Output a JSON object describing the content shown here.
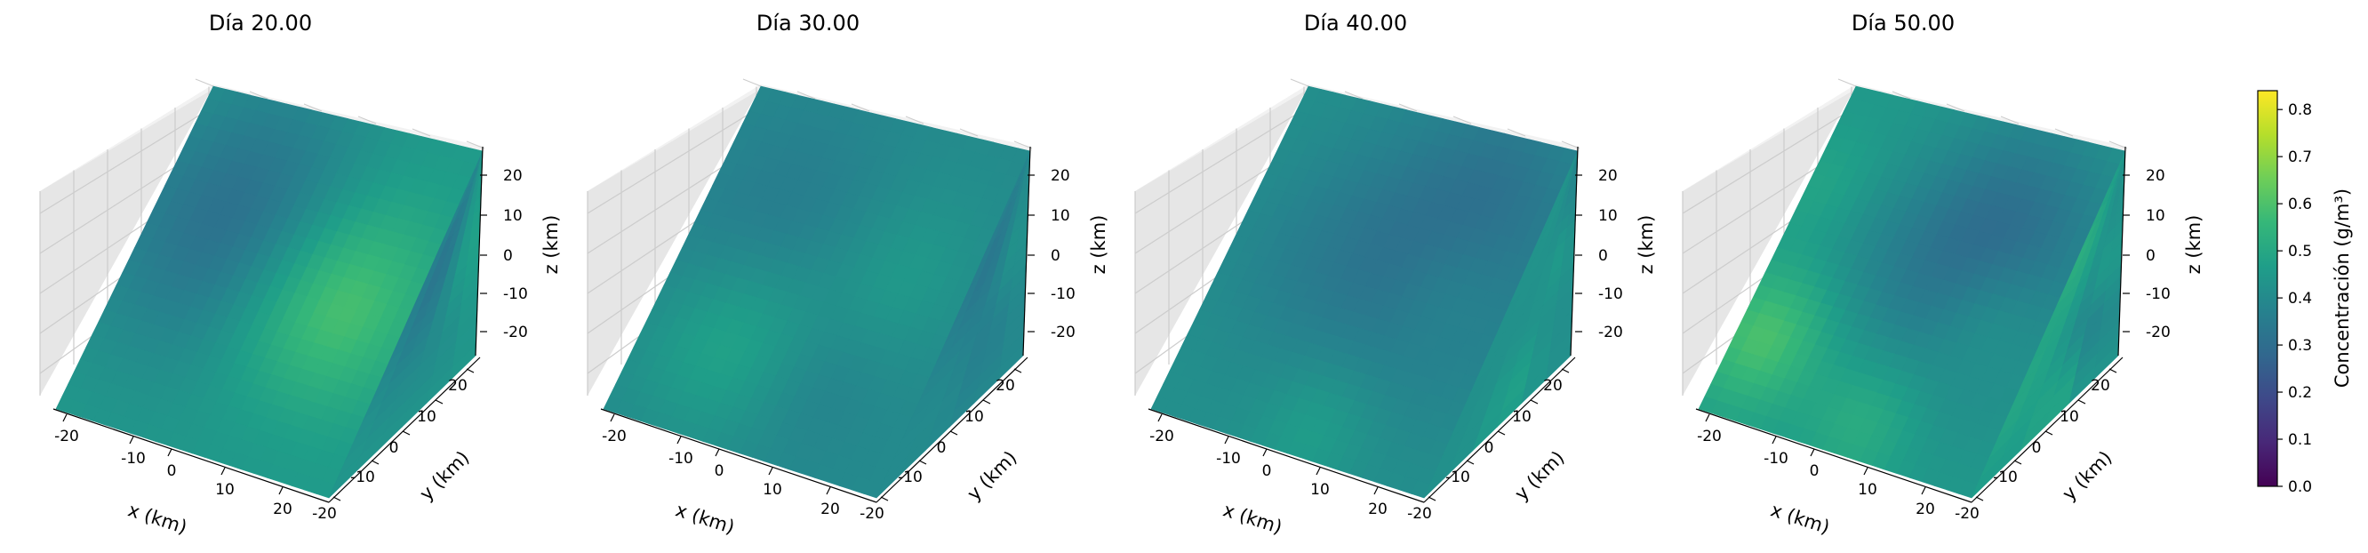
{
  "chart_data": {
    "type": "heatmap",
    "subtype": "3d-cube-surface",
    "panels": [
      {
        "title": "Día 20.00",
        "blobs": [
          {
            "face": "top",
            "u": 0.72,
            "v": 0.55,
            "value": 0.62,
            "spread": 0.22
          },
          {
            "face": "top",
            "u": 0.25,
            "v": 0.35,
            "value": 0.38,
            "spread": 0.3
          },
          {
            "face": "front",
            "u": 0.3,
            "v": 0.35,
            "value": 0.2,
            "spread": 0.28
          },
          {
            "face": "front",
            "u": 0.8,
            "v": 0.35,
            "value": 0.56,
            "spread": 0.2
          },
          {
            "face": "front",
            "u": 0.72,
            "v": 0.75,
            "value": 0.3,
            "spread": 0.18
          },
          {
            "face": "right",
            "u": 0.4,
            "v": 0.45,
            "value": 0.4,
            "spread": 0.3
          }
        ],
        "base": 0.45
      },
      {
        "title": "Día 30.00",
        "blobs": [
          {
            "face": "top",
            "u": 0.7,
            "v": 0.4,
            "value": 0.42,
            "spread": 0.25
          },
          {
            "face": "top",
            "u": 0.3,
            "v": 0.7,
            "value": 0.5,
            "spread": 0.2
          },
          {
            "face": "front",
            "u": 0.28,
            "v": 0.38,
            "value": 0.18,
            "spread": 0.24
          },
          {
            "face": "front",
            "u": 0.76,
            "v": 0.42,
            "value": 0.55,
            "spread": 0.16
          },
          {
            "face": "front",
            "u": 0.65,
            "v": 0.75,
            "value": 0.28,
            "spread": 0.16
          },
          {
            "face": "right",
            "u": 0.4,
            "v": 0.5,
            "value": 0.38,
            "spread": 0.3
          }
        ],
        "base": 0.4
      },
      {
        "title": "Día 40.00",
        "blobs": [
          {
            "face": "top",
            "u": 0.7,
            "v": 0.35,
            "value": 0.3,
            "spread": 0.3
          },
          {
            "face": "front",
            "u": 0.25,
            "v": 0.45,
            "value": 0.25,
            "spread": 0.22
          },
          {
            "face": "front",
            "u": 0.78,
            "v": 0.45,
            "value": 0.62,
            "spread": 0.14
          },
          {
            "face": "front",
            "u": 0.55,
            "v": 0.9,
            "value": 0.65,
            "spread": 0.14
          },
          {
            "face": "front",
            "u": 0.8,
            "v": 0.1,
            "value": 0.35,
            "spread": 0.15
          },
          {
            "face": "right",
            "u": 0.3,
            "v": 0.4,
            "value": 0.48,
            "spread": 0.25
          }
        ],
        "base": 0.42
      },
      {
        "title": "Día 50.00",
        "blobs": [
          {
            "face": "top",
            "u": 0.7,
            "v": 0.35,
            "value": 0.28,
            "spread": 0.25
          },
          {
            "face": "top",
            "u": 0.1,
            "v": 0.75,
            "value": 0.6,
            "spread": 0.15
          },
          {
            "face": "front",
            "u": 0.28,
            "v": 0.45,
            "value": 0.28,
            "spread": 0.18
          },
          {
            "face": "front",
            "u": 0.78,
            "v": 0.52,
            "value": 0.8,
            "spread": 0.14
          },
          {
            "face": "front",
            "u": 0.55,
            "v": 0.88,
            "value": 0.8,
            "spread": 0.14
          },
          {
            "face": "front",
            "u": 0.05,
            "v": 0.3,
            "value": 0.62,
            "spread": 0.12
          },
          {
            "face": "right",
            "u": 0.3,
            "v": 0.4,
            "value": 0.55,
            "spread": 0.2
          },
          {
            "face": "right",
            "u": 0.7,
            "v": 0.7,
            "value": 0.35,
            "spread": 0.2
          }
        ],
        "base": 0.45
      }
    ],
    "x_axis": {
      "label": "x (km)",
      "ticks": [
        -20,
        -10,
        0,
        10,
        20
      ],
      "range": [
        -25,
        25
      ]
    },
    "y_axis": {
      "label": "y (km)",
      "ticks": [
        -20,
        -10,
        0,
        10,
        20
      ],
      "range": [
        -25,
        25
      ]
    },
    "z_axis": {
      "label": "z (km)",
      "ticks": [
        20,
        10,
        0,
        -10,
        -20
      ],
      "range": [
        -25,
        25
      ]
    },
    "colorbar": {
      "label": "Concentración (g/m³)",
      "ticks": [
        "0.0",
        "0.1",
        "0.2",
        "0.3",
        "0.4",
        "0.5",
        "0.6",
        "0.7",
        "0.8"
      ],
      "range": [
        0.0,
        0.84
      ],
      "colormap": "viridis"
    },
    "grid": true
  },
  "colors": {
    "viridis": [
      "#440154",
      "#482878",
      "#3e4989",
      "#31688e",
      "#26828e",
      "#1f9e89",
      "#35b779",
      "#6ece58",
      "#b5de2b",
      "#fde725"
    ],
    "pane_top": "#f2f2f2",
    "pane_left": "#e6e6e6",
    "grid": "#cccccc"
  }
}
